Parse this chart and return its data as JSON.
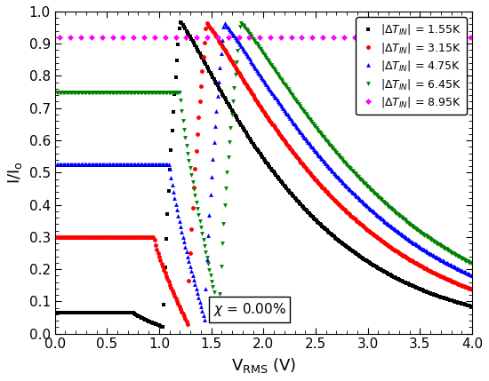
{
  "xlim": [
    0.0,
    4.0
  ],
  "ylim": [
    0.0,
    1.0
  ],
  "background": "#ffffff",
  "markersize": 3.5
}
